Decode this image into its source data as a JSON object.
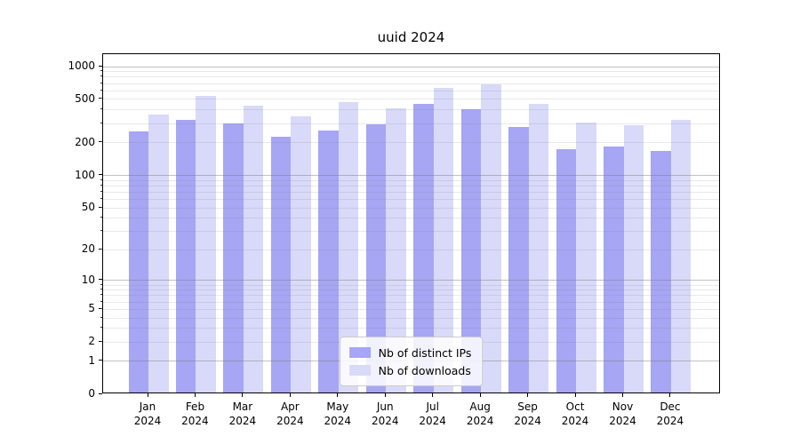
{
  "title": "uuid 2024",
  "chart_data": {
    "type": "bar",
    "title": "uuid 2024",
    "categories": [
      "Jan",
      "Feb",
      "Mar",
      "Apr",
      "May",
      "Jun",
      "Jul",
      "Aug",
      "Sep",
      "Oct",
      "Nov",
      "Dec"
    ],
    "category_year": "2024",
    "series": [
      {
        "name": "Nb of distinct IPs",
        "color": "#a6a6f4",
        "values": [
          245,
          313,
          290,
          219,
          250,
          285,
          435,
          392,
          270,
          168,
          178,
          163
        ]
      },
      {
        "name": "Nb of downloads",
        "color": "#d9d9f9",
        "values": [
          350,
          518,
          422,
          337,
          455,
          400,
          615,
          660,
          437,
          296,
          280,
          310
        ]
      }
    ],
    "y_axis": {
      "scale": "log1p",
      "tick_values": [
        0,
        1,
        2,
        5,
        10,
        20,
        50,
        100,
        200,
        500,
        1000
      ],
      "tick_labels": [
        "0",
        "1",
        "2",
        "5",
        "10",
        "20",
        "50",
        "100",
        "200",
        "500",
        "1000"
      ],
      "max": 1290,
      "grid": true
    },
    "x_axis": {
      "grid": false
    },
    "legend": {
      "position": "lower center"
    }
  }
}
